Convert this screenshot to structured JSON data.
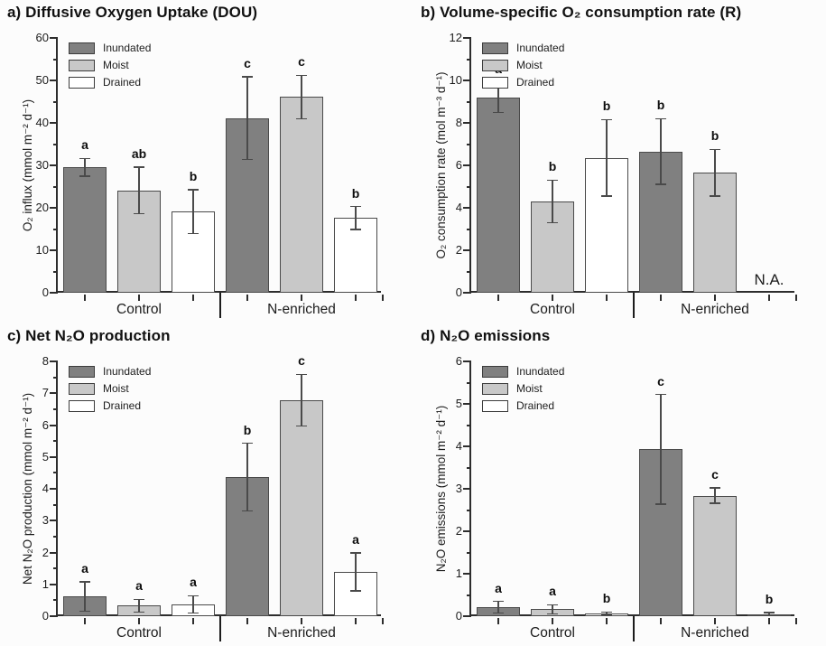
{
  "figure": {
    "background": "#fcfcfc",
    "axis_color": "#2d2d2d",
    "text_color": "#141414",
    "bar_border_color": "#4a4a4a",
    "error_bar_color": "#4a4a4a",
    "legend": {
      "items": [
        {
          "label": "Inundated",
          "color": "#808080"
        },
        {
          "label": "Moist",
          "color": "#c8c8c8"
        },
        {
          "label": "Drained",
          "color": "#ffffff"
        }
      ]
    }
  },
  "chart_data": [
    {
      "panel": "a",
      "type": "bar",
      "title": "a) Diffusive Oxygen Uptake (DOU)",
      "ylabel": "O₂ influx (mmol m⁻² d⁻¹)",
      "ylim": [
        0,
        60
      ],
      "yticks": [
        0,
        10,
        20,
        30,
        40,
        50,
        60
      ],
      "ytick_minor_step": 5,
      "grid": false,
      "legend_position": "top-left",
      "categories": [
        "Control",
        "N-enriched"
      ],
      "series": [
        {
          "name": "Inundated",
          "color": "#808080",
          "values": [
            29.5,
            41.1
          ],
          "errors": [
            2.1,
            9.7
          ],
          "letters": [
            "a",
            "c"
          ]
        },
        {
          "name": "Moist",
          "color": "#c8c8c8",
          "values": [
            24.1,
            46.1
          ],
          "errors": [
            5.5,
            5.1
          ],
          "letters": [
            "ab",
            "c"
          ]
        },
        {
          "name": "Drained",
          "color": "#ffffff",
          "values": [
            19.1,
            17.6
          ],
          "errors": [
            5.2,
            2.7
          ],
          "letters": [
            "b",
            "b"
          ]
        }
      ],
      "na_note": null
    },
    {
      "panel": "b",
      "type": "bar",
      "title": "b) Volume-specific O₂ consumption rate (R)",
      "ylabel": "O₂ consumption rate (mol m⁻³ d⁻¹)",
      "ylim": [
        0,
        12
      ],
      "yticks": [
        0,
        2,
        4,
        6,
        8,
        10,
        12
      ],
      "ytick_minor_step": 1,
      "grid": false,
      "legend_position": "top-left",
      "categories": [
        "Control",
        "N-enriched"
      ],
      "series": [
        {
          "name": "Inundated",
          "color": "#808080",
          "values": [
            9.2,
            6.65
          ],
          "errors": [
            0.7,
            1.55
          ],
          "letters": [
            "a",
            "b"
          ]
        },
        {
          "name": "Moist",
          "color": "#c8c8c8",
          "values": [
            4.3,
            5.65
          ],
          "errors": [
            1.0,
            1.1
          ],
          "letters": [
            "b",
            "b"
          ]
        },
        {
          "name": "Drained",
          "color": "#ffffff",
          "values": [
            6.35,
            null
          ],
          "errors": [
            1.8,
            null
          ],
          "letters": [
            "b",
            null
          ]
        }
      ],
      "na_note": "N.A."
    },
    {
      "panel": "c",
      "type": "bar",
      "title": "c) Net N₂O production",
      "ylabel": "Net N₂O production (mmol m⁻² d⁻¹)",
      "ylim": [
        0,
        8
      ],
      "yticks": [
        0,
        1,
        2,
        3,
        4,
        5,
        6,
        7,
        8
      ],
      "ytick_minor_step": 0.5,
      "grid": false,
      "legend_position": "top-left",
      "categories": [
        "Control",
        "N-enriched"
      ],
      "series": [
        {
          "name": "Inundated",
          "color": "#808080",
          "values": [
            0.62,
            4.37
          ],
          "errors": [
            0.46,
            1.06
          ],
          "letters": [
            "a",
            "b"
          ]
        },
        {
          "name": "Moist",
          "color": "#c8c8c8",
          "values": [
            0.33,
            6.78
          ],
          "errors": [
            0.2,
            0.81
          ],
          "letters": [
            "a",
            "c"
          ]
        },
        {
          "name": "Drained",
          "color": "#ffffff",
          "values": [
            0.37,
            1.39
          ],
          "errors": [
            0.27,
            0.6
          ],
          "letters": [
            "a",
            "a"
          ]
        }
      ],
      "na_note": null
    },
    {
      "panel": "d",
      "type": "bar",
      "title": "d) N₂O emissions",
      "ylabel": "N₂O emissions (mmol m⁻² d⁻¹)",
      "ylim": [
        0,
        6
      ],
      "yticks": [
        0,
        1,
        2,
        3,
        4,
        5,
        6
      ],
      "ytick_minor_step": 0.5,
      "grid": false,
      "legend_position": "top-left",
      "categories": [
        "Control",
        "N-enriched"
      ],
      "series": [
        {
          "name": "Inundated",
          "color": "#808080",
          "values": [
            0.21,
            3.93
          ],
          "errors": [
            0.14,
            1.29
          ],
          "letters": [
            "a",
            "c"
          ]
        },
        {
          "name": "Moist",
          "color": "#c8c8c8",
          "values": [
            0.16,
            2.84
          ],
          "errors": [
            0.11,
            0.18
          ],
          "letters": [
            "a",
            "c"
          ]
        },
        {
          "name": "Drained",
          "color": "#ffffff",
          "values": [
            0.06,
            0.05
          ],
          "errors": [
            0.04,
            0.03
          ],
          "letters": [
            "b",
            "b"
          ]
        }
      ],
      "na_note": null
    }
  ]
}
